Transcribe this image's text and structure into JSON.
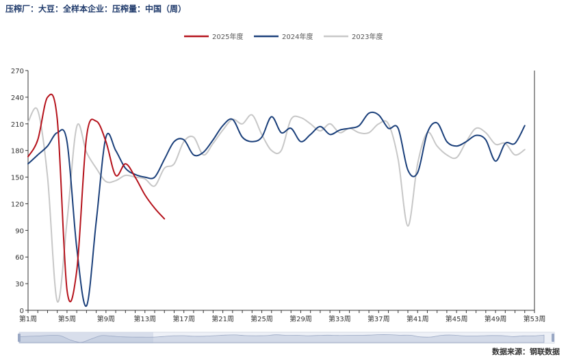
{
  "header": {
    "title": "压榨厂：大豆：全样本企业：压榨量：中国（周）"
  },
  "footer": {
    "source": "数据来源：钢联数据"
  },
  "chart_data": {
    "type": "line",
    "title": "压榨厂：大豆：全样本企业：压榨量：中国（周）",
    "xlabel": "",
    "ylabel": "",
    "ylim": [
      0,
      270
    ],
    "yticks": [
      0,
      30,
      60,
      90,
      120,
      150,
      180,
      210,
      240,
      270
    ],
    "xlim": [
      1,
      53
    ],
    "xtick_labels": [
      "第1周",
      "第5周",
      "第9周",
      "第13周",
      "第17周",
      "第21周",
      "第25周",
      "第29周",
      "第33周",
      "第37周",
      "第41周",
      "第45周",
      "第49周",
      "第53周"
    ],
    "grid": false,
    "legend_position": "top-center",
    "series": [
      {
        "name": "2025年度",
        "color": "#b5121b",
        "x": [
          1,
          2,
          3,
          4,
          5,
          6,
          7,
          8,
          9,
          10,
          11,
          12,
          13,
          14,
          15
        ],
        "y": [
          173,
          192,
          240,
          215,
          23,
          45,
          195,
          213,
          190,
          152,
          165,
          150,
          130,
          115,
          103
        ]
      },
      {
        "name": "2024年度",
        "color": "#1a3f7a",
        "x": [
          1,
          2,
          3,
          4,
          5,
          6,
          7,
          8,
          9,
          10,
          11,
          12,
          13,
          14,
          15,
          16,
          17,
          18,
          19,
          20,
          21,
          22,
          23,
          24,
          25,
          26,
          27,
          28,
          29,
          30,
          31,
          32,
          33,
          34,
          35,
          36,
          37,
          38,
          39,
          40,
          41,
          42,
          43,
          44,
          45,
          46,
          47,
          48,
          49,
          50,
          51,
          52
        ],
        "y": [
          165,
          175,
          185,
          200,
          190,
          70,
          5,
          100,
          195,
          180,
          160,
          153,
          150,
          150,
          170,
          190,
          192,
          175,
          178,
          192,
          208,
          215,
          195,
          190,
          195,
          218,
          200,
          205,
          190,
          198,
          207,
          198,
          203,
          205,
          208,
          222,
          220,
          205,
          205,
          158,
          155,
          200,
          211,
          190,
          185,
          190,
          197,
          192,
          168,
          188,
          188,
          208
        ]
      },
      {
        "name": "2023年度",
        "color": "#c7c7c7",
        "x": [
          1,
          2,
          3,
          4,
          5,
          6,
          7,
          8,
          9,
          10,
          11,
          12,
          13,
          14,
          15,
          16,
          17,
          18,
          19,
          20,
          21,
          22,
          23,
          24,
          25,
          26,
          27,
          28,
          29,
          30,
          31,
          32,
          33,
          34,
          35,
          36,
          37,
          38,
          39,
          40,
          41,
          42,
          43,
          44,
          45,
          46,
          47,
          48,
          49,
          50,
          51,
          52
        ],
        "y": [
          212,
          225,
          150,
          10,
          100,
          207,
          178,
          160,
          145,
          146,
          152,
          150,
          148,
          140,
          160,
          165,
          190,
          195,
          175,
          188,
          203,
          215,
          210,
          220,
          198,
          180,
          180,
          215,
          217,
          210,
          202,
          210,
          200,
          205,
          200,
          200,
          210,
          210,
          170,
          95,
          165,
          200,
          185,
          175,
          172,
          190,
          205,
          200,
          187,
          188,
          175,
          181
        ]
      }
    ]
  }
}
